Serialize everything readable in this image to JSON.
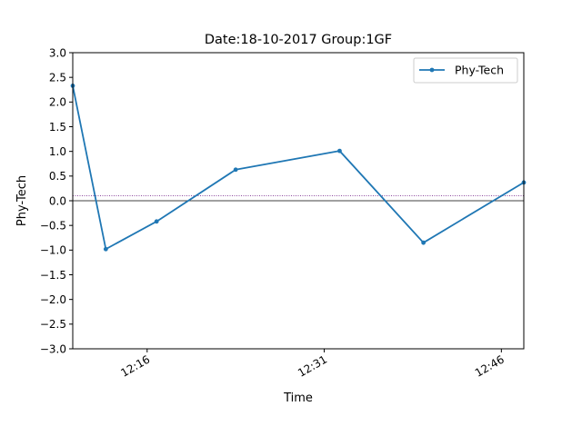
{
  "chart_data": {
    "type": "line",
    "title": "Date:18-10-2017 Group:1GF",
    "xlabel": "Time",
    "ylabel": "Phy-Tech",
    "x_ticks": [
      {
        "label": "12:16",
        "minutes": 16
      },
      {
        "label": "12:31",
        "minutes": 31
      },
      {
        "label": "12:46",
        "minutes": 46
      }
    ],
    "xlim_minutes": [
      9.7,
      47.9
    ],
    "ylim": [
      -3.0,
      3.0
    ],
    "y_ticks": [
      {
        "value": 3.0,
        "label": "3.0"
      },
      {
        "value": 2.5,
        "label": "2.5"
      },
      {
        "value": 2.0,
        "label": "2.0"
      },
      {
        "value": 1.5,
        "label": "1.5"
      },
      {
        "value": 1.0,
        "label": "1.0"
      },
      {
        "value": 0.5,
        "label": "0.5"
      },
      {
        "value": 0.0,
        "label": "0.0"
      },
      {
        "value": -0.5,
        "label": "−0.5"
      },
      {
        "value": -1.0,
        "label": "−1.0"
      },
      {
        "value": -1.5,
        "label": "−1.5"
      },
      {
        "value": -2.0,
        "label": "−2.0"
      },
      {
        "value": -2.5,
        "label": "−2.5"
      },
      {
        "value": -3.0,
        "label": "−3.0"
      }
    ],
    "series": [
      {
        "name": "Phy-Tech",
        "color": "#1f77b4",
        "points": [
          {
            "time": "12:09:42",
            "minutes": 9.7,
            "y": 2.33
          },
          {
            "time": "12:12:30",
            "minutes": 12.5,
            "y": -0.98
          },
          {
            "time": "12:16:48",
            "minutes": 16.8,
            "y": -0.42
          },
          {
            "time": "12:23:30",
            "minutes": 23.5,
            "y": 0.63
          },
          {
            "time": "12:32:18",
            "minutes": 32.3,
            "y": 1.01
          },
          {
            "time": "12:39:24",
            "minutes": 39.4,
            "y": -0.85
          },
          {
            "time": "12:47:54",
            "minutes": 47.9,
            "y": 0.37
          }
        ]
      }
    ],
    "reference_lines": [
      {
        "y": 0.0,
        "color": "#000000",
        "style": "solid"
      },
      {
        "y": 0.1,
        "color": "#7b2d8e",
        "style": "dotted"
      }
    ],
    "grid": false,
    "legend_position": "top-right"
  }
}
